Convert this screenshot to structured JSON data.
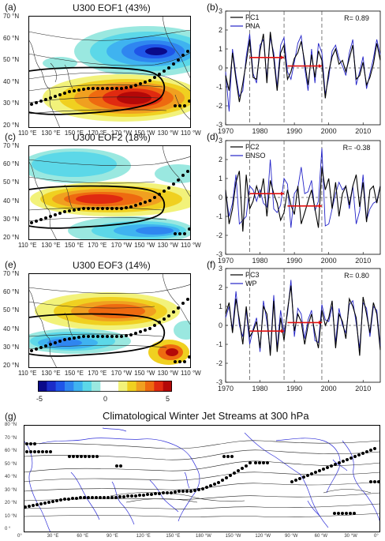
{
  "figure": {
    "maps": [
      {
        "label": "(a)",
        "title": "U300 EOF1 (43%)"
      },
      {
        "label": "(c)",
        "title": "U300 EOF2 (18%)"
      },
      {
        "label": "(e)",
        "title": "U300 EOF3 (14%)"
      }
    ],
    "map_lat_ticks": [
      "70 °N",
      "60 °N",
      "50 °N",
      "40 °N",
      "30 °N",
      "20 °N"
    ],
    "map_lon_ticks": [
      "110 °E",
      "130 °E",
      "150 °E",
      "170 °E",
      "170 °W",
      "150 °W",
      "130 °W",
      "110 °W"
    ],
    "colorbar": {
      "ticks": [
        "-5",
        "0",
        "5"
      ],
      "colors": [
        "#0a0a8a",
        "#1a2cc8",
        "#1f55e8",
        "#2f86f0",
        "#3fb3f0",
        "#5cd8e8",
        "#9ae8e0",
        "#ffffff",
        "#ffffff",
        "#f2f27a",
        "#f0d020",
        "#f0a020",
        "#ee6a10",
        "#e02a10",
        "#b40808"
      ]
    },
    "panel_g": {
      "label": "(g)",
      "title": "Climatological Winter Jet Streams at 300 hPa",
      "lat_ticks": [
        "80 °N",
        "70 °N",
        "60 °N",
        "50 °N",
        "40 °N",
        "30 °N",
        "20 °N",
        "10 °N",
        "0 °"
      ],
      "lon_ticks": [
        "0°",
        "30 °E",
        "60 °E",
        "90 °E",
        "120 °E",
        "150 °E",
        "180 °W",
        "150 °W",
        "120 °W",
        "90 °W",
        "60 °W",
        "30 °W",
        "0°"
      ]
    }
  },
  "chart_data": [
    {
      "type": "line",
      "panel": "(b)",
      "x_range": [
        1970,
        2015
      ],
      "ylim": [
        -3,
        3
      ],
      "xticks": [
        "1970",
        "1980",
        "1990",
        "2000",
        "2010"
      ],
      "yticks": [
        "3",
        "2",
        "1",
        "0",
        "-1",
        "-2",
        "-3"
      ],
      "legend": [
        "PC1",
        "PNA"
      ],
      "annotation": "R= 0.89",
      "series": [
        {
          "name": "PC1",
          "color": "#000000",
          "x": [
            1970,
            1971,
            1972,
            1973,
            1974,
            1975,
            1976,
            1977,
            1978,
            1979,
            1980,
            1981,
            1982,
            1983,
            1984,
            1985,
            1986,
            1987,
            1988,
            1989,
            1990,
            1991,
            1992,
            1993,
            1994,
            1995,
            1996,
            1997,
            1998,
            1999,
            2000,
            2001,
            2002,
            2003,
            2004,
            2005,
            2006,
            2007,
            2008,
            2009,
            2010,
            2011,
            2012,
            2013,
            2014,
            2015
          ],
          "values": [
            -0.4,
            -1.2,
            0.8,
            -0.6,
            -1.8,
            -0.8,
            0.3,
            1.5,
            -0.5,
            -0.6,
            0.9,
            1.8,
            -0.8,
            1.9,
            0.5,
            -1.2,
            0.8,
            1.2,
            -0.6,
            -0.2,
            0.5,
            0.8,
            1.4,
            0.3,
            -0.9,
            0.7,
            -0.5,
            0.9,
            0.4,
            -1.6,
            -0.2,
            0.6,
            1.0,
            0.2,
            0.4,
            -0.2,
            0.5,
            1.2,
            -0.6,
            -0.4,
            0.3,
            -0.9,
            -0.5,
            0.2,
            1.3,
            0.4
          ]
        },
        {
          "name": "PNA",
          "color": "#2424c8",
          "x": [
            1970,
            1971,
            1972,
            1973,
            1974,
            1975,
            1976,
            1977,
            1978,
            1979,
            1980,
            1981,
            1982,
            1983,
            1984,
            1985,
            1986,
            1987,
            1988,
            1989,
            1990,
            1991,
            1992,
            1993,
            1994,
            1995,
            1996,
            1997,
            1998,
            1999,
            2000,
            2001,
            2002,
            2003,
            2004,
            2005,
            2006,
            2007,
            2008,
            2009,
            2010,
            2011,
            2012,
            2013,
            2014,
            2015
          ],
          "values": [
            -0.2,
            -2.3,
            1.0,
            -0.4,
            -1.5,
            -1.2,
            0.6,
            1.8,
            -0.3,
            -0.8,
            1.2,
            1.5,
            -0.5,
            1.6,
            0.8,
            -1.0,
            1.2,
            1.6,
            -0.2,
            -0.6,
            0.3,
            1.3,
            1.7,
            0.0,
            -1.2,
            1.0,
            -0.8,
            1.3,
            0.8,
            -1.4,
            -0.5,
            0.9,
            1.2,
            0.5,
            0.1,
            -0.4,
            0.8,
            1.5,
            -0.9,
            -0.2,
            0.6,
            -1.1,
            -0.3,
            0.5,
            1.5,
            0.7
          ]
        }
      ],
      "means": [
        {
          "x0": 1977,
          "x1": 1987,
          "y": 0.55
        },
        {
          "x0": 1988,
          "x1": 1998,
          "y": 0.1
        }
      ],
      "vlines": [
        1977,
        1987,
        1998
      ]
    },
    {
      "type": "line",
      "panel": "(d)",
      "x_range": [
        1970,
        2015
      ],
      "ylim": [
        -3,
        3
      ],
      "xticks": [
        "1970",
        "1980",
        "1990",
        "2000",
        "2010"
      ],
      "yticks": [
        "3",
        "2",
        "1",
        "0",
        "-1",
        "-2",
        "-3"
      ],
      "legend": [
        "PC2",
        "ENSO"
      ],
      "annotation": "R= -0.38",
      "series": [
        {
          "name": "PC2",
          "color": "#000000",
          "x": [
            1970,
            1971,
            1972,
            1973,
            1974,
            1975,
            1976,
            1977,
            1978,
            1979,
            1980,
            1981,
            1982,
            1983,
            1984,
            1985,
            1986,
            1987,
            1988,
            1989,
            1990,
            1991,
            1992,
            1993,
            1994,
            1995,
            1996,
            1997,
            1998,
            1999,
            2000,
            2001,
            2002,
            2003,
            2004,
            2005,
            2006,
            2007,
            2008,
            2009,
            2010,
            2011,
            2012,
            2013,
            2014,
            2015
          ],
          "values": [
            0.4,
            -1.4,
            -0.6,
            0.8,
            1.4,
            -1.8,
            1.2,
            -0.6,
            -0.2,
            0.6,
            0.0,
            1.0,
            -1.0,
            0.9,
            0.2,
            -0.3,
            -1.2,
            -0.8,
            0.4,
            -0.4,
            -0.9,
            0.6,
            -1.4,
            -0.8,
            -0.2,
            0.4,
            -0.6,
            -1.6,
            1.6,
            0.4,
            1.0,
            -0.6,
            0.8,
            -1.0,
            0.2,
            0.6,
            -0.4,
            0.6,
            1.2,
            -0.5,
            0.8,
            -1.3,
            0.4,
            0.6,
            -0.3,
            0.6
          ]
        },
        {
          "name": "ENSO",
          "color": "#2424c8",
          "x": [
            1970,
            1971,
            1972,
            1973,
            1974,
            1975,
            1976,
            1977,
            1978,
            1979,
            1980,
            1981,
            1982,
            1983,
            1984,
            1985,
            1986,
            1987,
            1988,
            1989,
            1990,
            1991,
            1992,
            1993,
            1994,
            1995,
            1996,
            1997,
            1998,
            1999,
            2000,
            2001,
            2002,
            2003,
            2004,
            2005,
            2006,
            2007,
            2008,
            2009,
            2010,
            2011,
            2012,
            2013,
            2014,
            2015
          ],
          "values": [
            0.3,
            -1.0,
            -0.3,
            1.2,
            -1.4,
            -1.2,
            -1.0,
            0.6,
            0.4,
            -0.2,
            0.4,
            -0.3,
            -0.5,
            2.0,
            -0.6,
            -0.8,
            -0.4,
            1.0,
            0.7,
            -1.6,
            0.2,
            0.5,
            1.6,
            0.2,
            0.3,
            0.9,
            -0.7,
            -0.2,
            2.6,
            -1.5,
            -1.4,
            -0.6,
            0.2,
            0.8,
            0.4,
            0.6,
            -0.6,
            0.6,
            -1.4,
            -0.7,
            1.2,
            -1.2,
            -0.6,
            -0.3,
            -0.2,
            0.6
          ]
        }
      ],
      "means": [
        {
          "x0": 1977,
          "x1": 1987,
          "y": 0.2
        },
        {
          "x0": 1988,
          "x1": 1998,
          "y": -0.45
        }
      ],
      "vlines": [
        1977,
        1987,
        1998
      ]
    },
    {
      "type": "line",
      "panel": "(f)",
      "x_range": [
        1970,
        2015
      ],
      "ylim": [
        -3,
        3
      ],
      "xticks": [
        "1970",
        "1980",
        "1990",
        "2000",
        "2010"
      ],
      "yticks": [
        "3",
        "2",
        "1",
        "0",
        "-1",
        "-2",
        "-3"
      ],
      "legend": [
        "PC3",
        "WP"
      ],
      "annotation": "R= 0.80",
      "series": [
        {
          "name": "PC3",
          "color": "#000000",
          "x": [
            1970,
            1971,
            1972,
            1973,
            1974,
            1975,
            1976,
            1977,
            1978,
            1979,
            1980,
            1981,
            1982,
            1983,
            1984,
            1985,
            1986,
            1987,
            1988,
            1989,
            1990,
            1991,
            1992,
            1993,
            1994,
            1995,
            1996,
            1997,
            1998,
            1999,
            2000,
            2001,
            2002,
            2003,
            2004,
            2005,
            2006,
            2007,
            2008,
            2009,
            2010,
            2011,
            2012,
            2013,
            2014,
            2015
          ],
          "values": [
            0.6,
            1.2,
            -0.4,
            1.4,
            0.3,
            -1.0,
            1.0,
            -0.6,
            -0.3,
            0.2,
            -1.2,
            1.0,
            0.6,
            -1.6,
            1.3,
            -1.4,
            0.4,
            -0.8,
            0.8,
            2.1,
            -0.3,
            0.6,
            0.2,
            -1.0,
            0.0,
            0.6,
            -0.4,
            -1.2,
            0.8,
            0.0,
            0.4,
            1.3,
            -1.2,
            0.6,
            0.2,
            -0.7,
            1.4,
            1.0,
            0.4,
            -1.6,
            1.5,
            0.6,
            -0.4,
            1.2,
            0.6,
            -1.3
          ]
        },
        {
          "name": "WP",
          "color": "#2424c8",
          "x": [
            1970,
            1971,
            1972,
            1973,
            1974,
            1975,
            1976,
            1977,
            1978,
            1979,
            1980,
            1981,
            1982,
            1983,
            1984,
            1985,
            1986,
            1987,
            1988,
            1989,
            1990,
            1991,
            1992,
            1993,
            1994,
            1995,
            1996,
            1997,
            1998,
            1999,
            2000,
            2001,
            2002,
            2003,
            2004,
            2005,
            2006,
            2007,
            2008,
            2009,
            2010,
            2011,
            2012,
            2013,
            2014,
            2015
          ],
          "values": [
            0.4,
            1.0,
            -0.2,
            1.8,
            0.0,
            -0.6,
            0.8,
            -1.0,
            -0.2,
            0.4,
            -1.4,
            1.3,
            0.2,
            -1.4,
            1.6,
            -1.2,
            0.8,
            -0.4,
            0.6,
            2.4,
            -0.6,
            0.9,
            0.6,
            -0.7,
            0.3,
            0.8,
            -0.8,
            -0.9,
            1.1,
            0.3,
            0.2,
            1.0,
            -0.9,
            0.9,
            0.0,
            -0.4,
            1.1,
            1.3,
            0.1,
            -1.2,
            1.2,
            0.9,
            -0.6,
            1.0,
            0.8,
            -1.1
          ]
        }
      ],
      "means": [
        {
          "x0": 1977,
          "x1": 1987,
          "y": -0.3
        },
        {
          "x0": 1988,
          "x1": 1998,
          "y": 0.15
        }
      ],
      "vlines": [
        1977,
        1987,
        1998
      ]
    }
  ]
}
